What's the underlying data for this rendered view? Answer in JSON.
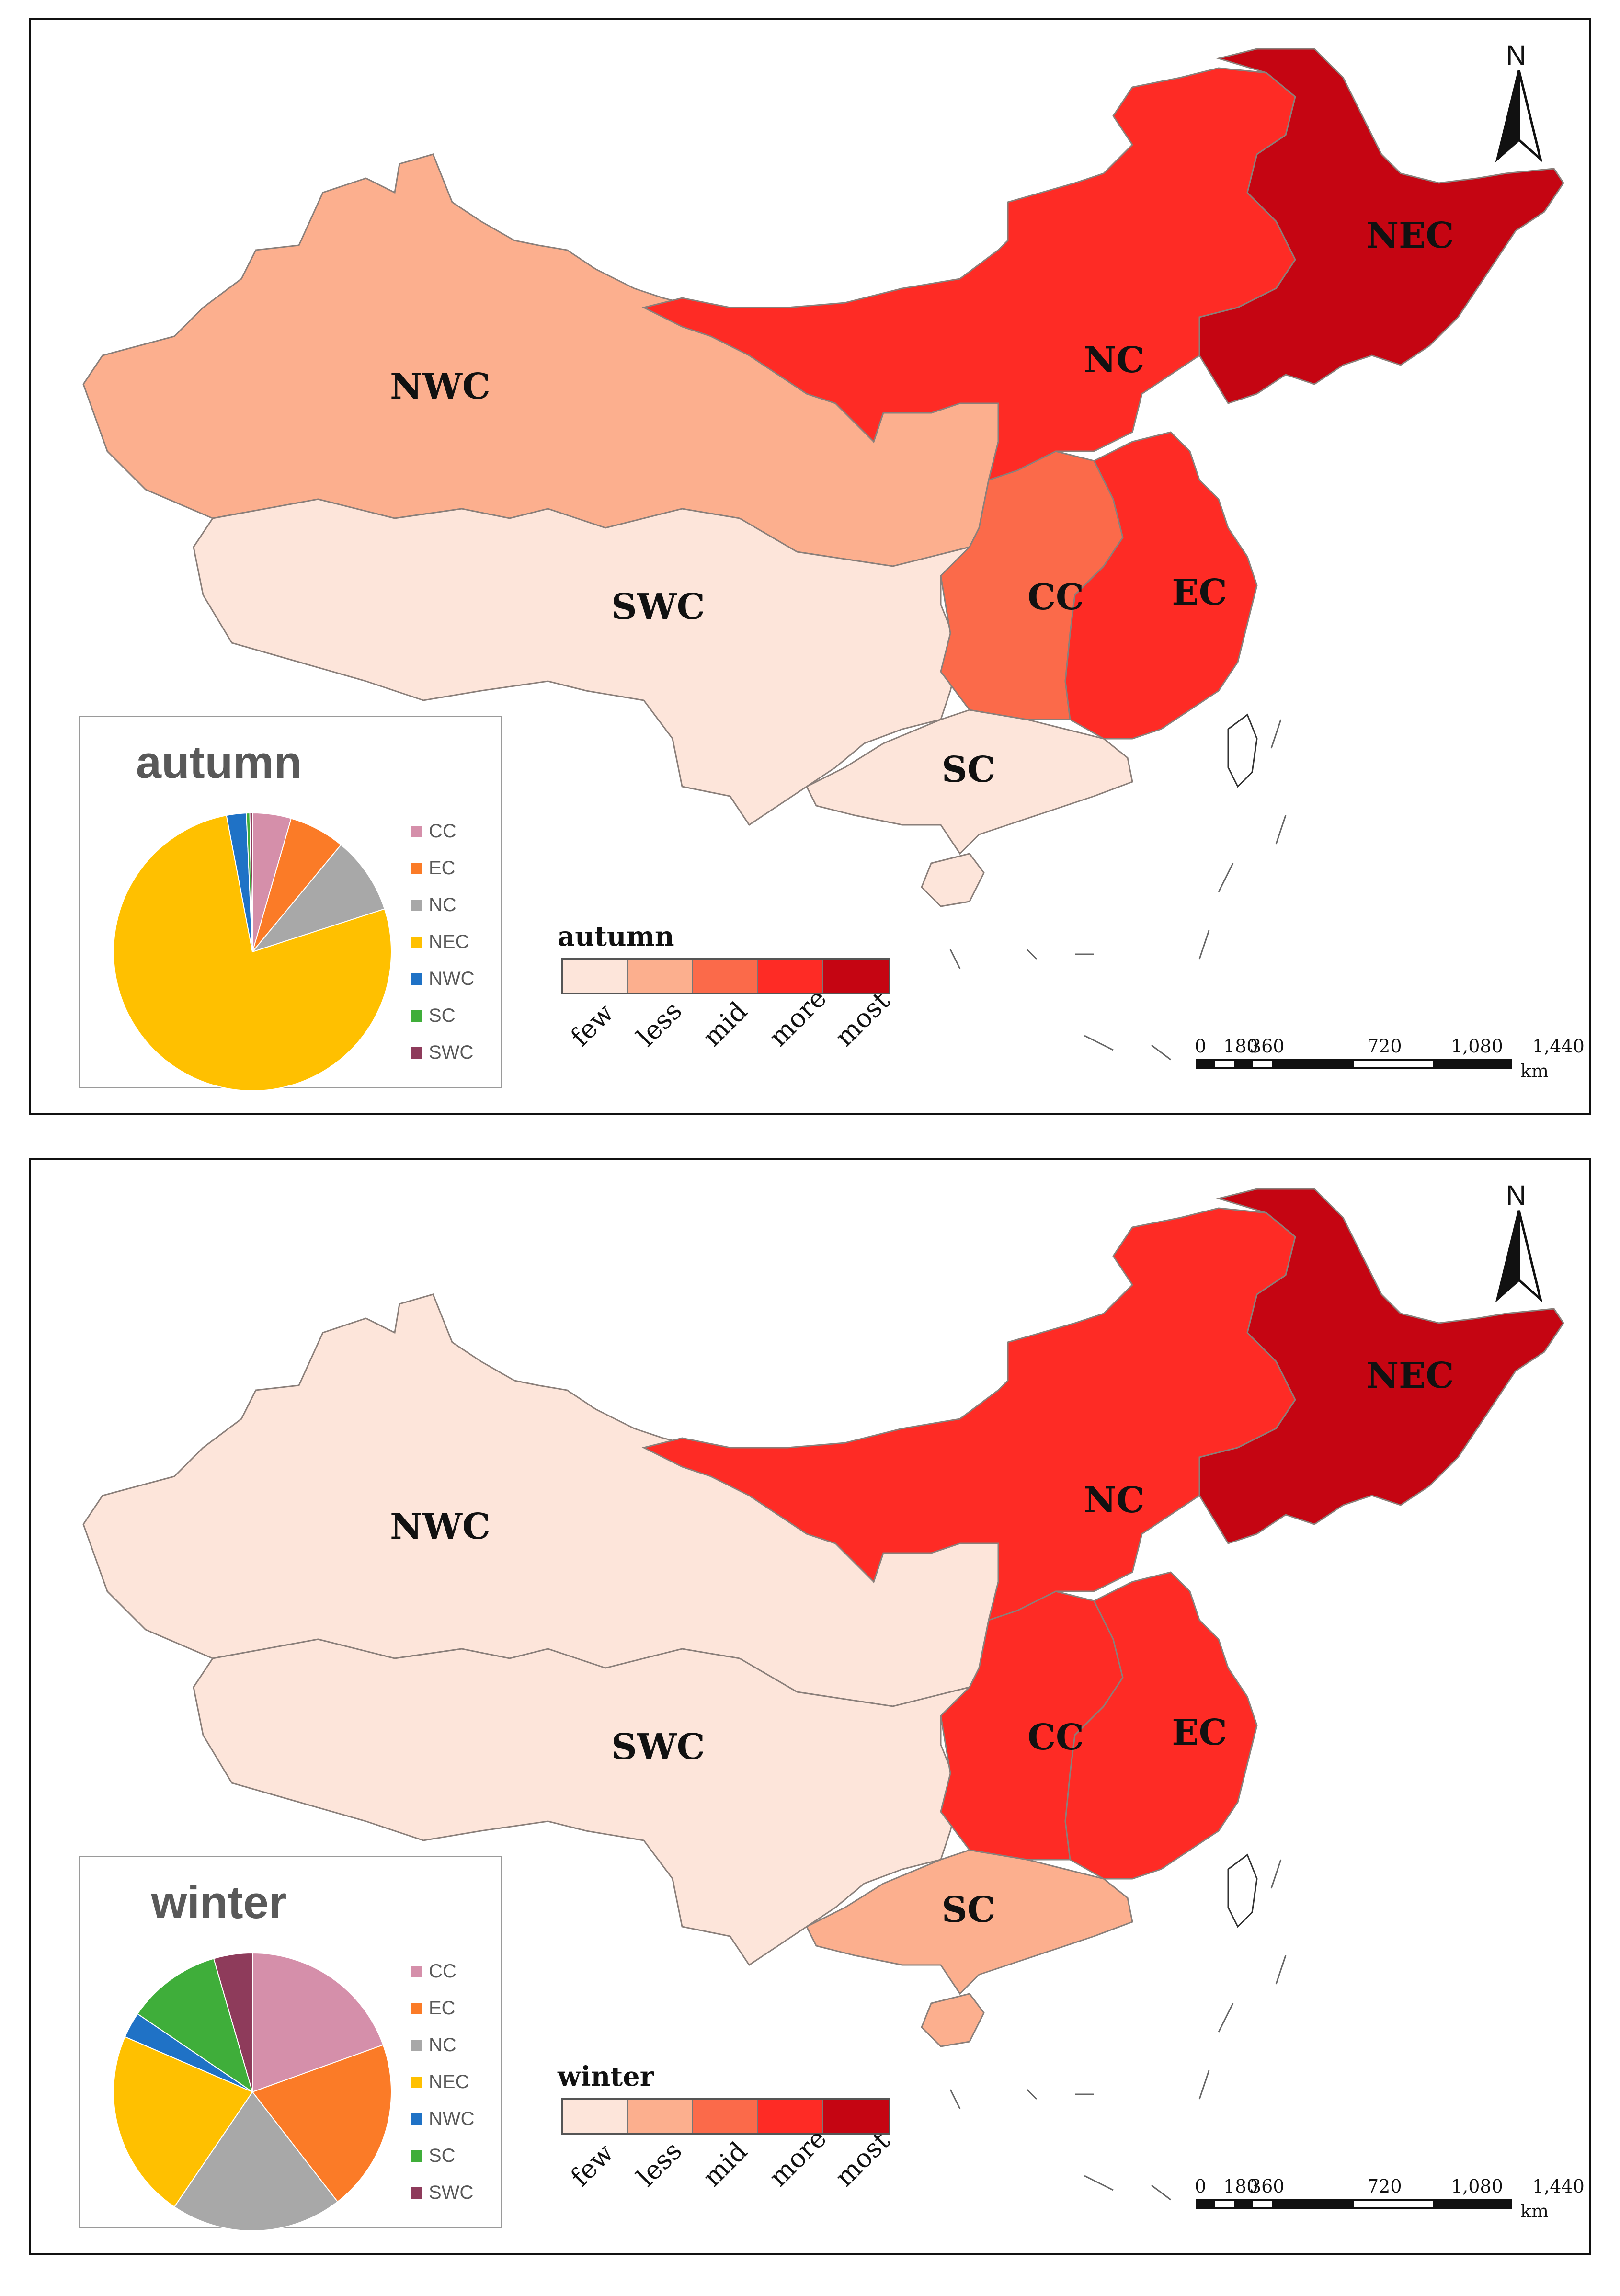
{
  "panels": [
    {
      "season": "autumn",
      "pie_title": "autumn",
      "legend_title": "autumn",
      "labels": {
        "NWC": "NWC",
        "SWC": "SWC",
        "NC": "NC",
        "NEC": "NEC",
        "EC": "EC",
        "CC": "CC",
        "SC": "SC"
      },
      "region_levels": {
        "NWC": "less",
        "SWC": "few",
        "NC": "more",
        "NEC": "most",
        "EC": "more",
        "CC": "mid",
        "SC": "few"
      },
      "pie_slices": [
        {
          "region": "CC",
          "percent": 4.5
        },
        {
          "region": "EC",
          "percent": 6.5
        },
        {
          "region": "NC",
          "percent": 9.0
        },
        {
          "region": "NEC",
          "percent": 77.0
        },
        {
          "region": "NWC",
          "percent": 2.3
        },
        {
          "region": "SC",
          "percent": 0.4
        },
        {
          "region": "SWC",
          "percent": 0.3
        }
      ]
    },
    {
      "season": "winter",
      "pie_title": "winter",
      "legend_title": "winter",
      "labels": {
        "NWC": "NWC",
        "SWC": "SWC",
        "NC": "NC",
        "NEC": "NEC",
        "EC": "EC",
        "CC": "CC",
        "SC": "SC"
      },
      "region_levels": {
        "NWC": "few",
        "SWC": "few",
        "NC": "more",
        "NEC": "most",
        "EC": "more",
        "CC": "more",
        "SC": "less"
      },
      "pie_slices": [
        {
          "region": "CC",
          "percent": 19.5
        },
        {
          "region": "EC",
          "percent": 20.0
        },
        {
          "region": "NC",
          "percent": 20.0
        },
        {
          "region": "NEC",
          "percent": 22.0
        },
        {
          "region": "NWC",
          "percent": 3.0
        },
        {
          "region": "SC",
          "percent": 11.0
        },
        {
          "region": "SWC",
          "percent": 4.5
        }
      ]
    }
  ],
  "pie_legend": [
    {
      "label": "CC",
      "color": "#d58faa"
    },
    {
      "label": "EC",
      "color": "#fb7b27"
    },
    {
      "label": "NC",
      "color": "#a8a8a8"
    },
    {
      "label": "NEC",
      "color": "#ffc000"
    },
    {
      "label": "NWC",
      "color": "#1f72c6"
    },
    {
      "label": "SC",
      "color": "#3fae3a"
    },
    {
      "label": "SWC",
      "color": "#8e3b5b"
    }
  ],
  "levels": [
    {
      "label": "few",
      "color": "#fde5da"
    },
    {
      "label": "less",
      "color": "#fcaf8e"
    },
    {
      "label": "mid",
      "color": "#fb6a4a"
    },
    {
      "label": "more",
      "color": "#fe2b25"
    },
    {
      "label": "most",
      "color": "#c50512"
    }
  ],
  "north_label": "N",
  "scale_ticks": [
    "0",
    "180",
    "360",
    "720",
    "1,080",
    "1,440"
  ],
  "scale_unit": "km"
}
